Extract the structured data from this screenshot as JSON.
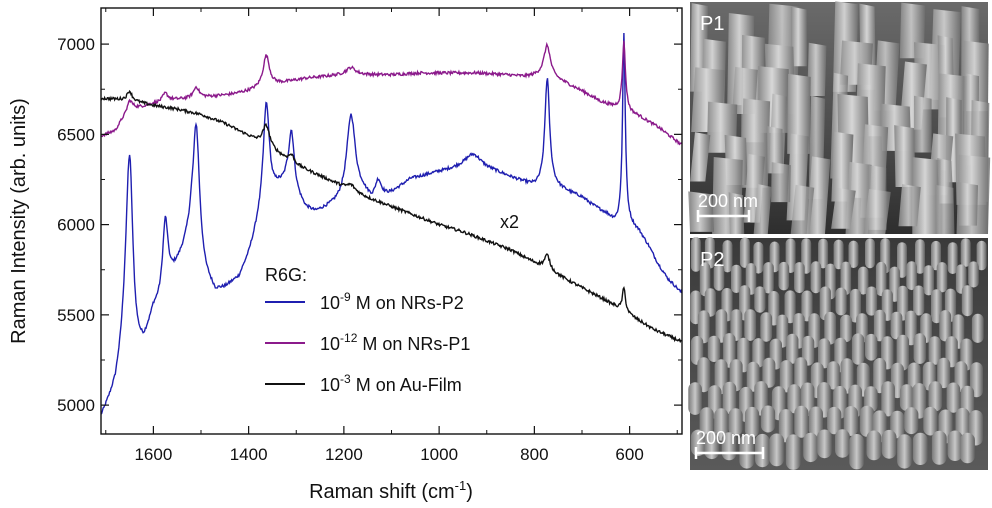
{
  "chart_data": {
    "type": "line",
    "xlabel": "Raman shift (cm",
    "xlabel_sup": "-1",
    "xlabel_close": ")",
    "ylabel": "Raman Intensity (arb. units)",
    "xlim": [
      1710,
      490
    ],
    "ylim": [
      4840,
      7200
    ],
    "x_reversed": true,
    "x_ticks": [
      1600,
      1400,
      1200,
      1000,
      800,
      600
    ],
    "y_ticks": [
      5000,
      5500,
      6000,
      6500,
      7000
    ],
    "legend_title": "R6G:",
    "annotation": "x2",
    "series": [
      {
        "name": "10-9 M on NRs-P2",
        "label_pre": "10",
        "label_sup": "-9",
        "label_post": " M on NRs-P2",
        "color": "#1f1fb0",
        "baseline": [
          [
            1710,
            4920
          ],
          [
            1680,
            5080
          ],
          [
            1660,
            5300
          ],
          [
            1640,
            5200
          ],
          [
            1620,
            5300
          ],
          [
            1600,
            5500
          ],
          [
            1580,
            5560
          ],
          [
            1560,
            5700
          ],
          [
            1540,
            5820
          ],
          [
            1520,
            5950
          ],
          [
            1490,
            5700
          ],
          [
            1470,
            5620
          ],
          [
            1450,
            5640
          ],
          [
            1420,
            5700
          ],
          [
            1400,
            5820
          ],
          [
            1380,
            5980
          ],
          [
            1340,
            6180
          ],
          [
            1320,
            6220
          ],
          [
            1300,
            6150
          ],
          [
            1280,
            6080
          ],
          [
            1260,
            6060
          ],
          [
            1240,
            6080
          ],
          [
            1220,
            6100
          ],
          [
            1200,
            6120
          ],
          [
            1160,
            6160
          ],
          [
            1140,
            6120
          ],
          [
            1100,
            6170
          ],
          [
            1060,
            6250
          ],
          [
            1000,
            6290
          ],
          [
            960,
            6310
          ],
          [
            920,
            6320
          ],
          [
            880,
            6290
          ],
          [
            850,
            6260
          ],
          [
            820,
            6230
          ],
          [
            800,
            6210
          ],
          [
            760,
            6210
          ],
          [
            720,
            6170
          ],
          [
            700,
            6150
          ],
          [
            680,
            6110
          ],
          [
            650,
            6060
          ],
          [
            630,
            6010
          ],
          [
            600,
            6000
          ],
          [
            580,
            5960
          ],
          [
            560,
            5880
          ],
          [
            540,
            5780
          ],
          [
            520,
            5700
          ],
          [
            490,
            5620
          ]
        ],
        "peaks": [
          [
            1650,
            1130,
            9
          ],
          [
            1575,
            420,
            7
          ],
          [
            1510,
            680,
            8
          ],
          [
            1363,
            600,
            8
          ],
          [
            1310,
            320,
            7
          ],
          [
            1185,
            470,
            11
          ],
          [
            1128,
            100,
            8
          ],
          [
            930,
            70,
            20
          ],
          [
            773,
            600,
            6
          ],
          [
            612,
            1050,
            3.5
          ]
        ]
      },
      {
        "name": "10-12 M on NRs-P1",
        "label_pre": "10",
        "label_sup": "-12",
        "label_post": " M on NRs-P1",
        "color": "#8b1a8b",
        "baseline": [
          [
            1710,
            6490
          ],
          [
            1680,
            6520
          ],
          [
            1665,
            6580
          ],
          [
            1640,
            6640
          ],
          [
            1600,
            6670
          ],
          [
            1560,
            6690
          ],
          [
            1520,
            6700
          ],
          [
            1480,
            6710
          ],
          [
            1440,
            6720
          ],
          [
            1400,
            6740
          ],
          [
            1360,
            6770
          ],
          [
            1320,
            6790
          ],
          [
            1280,
            6810
          ],
          [
            1240,
            6820
          ],
          [
            1200,
            6830
          ],
          [
            1160,
            6830
          ],
          [
            1100,
            6830
          ],
          [
            1040,
            6840
          ],
          [
            980,
            6840
          ],
          [
            920,
            6840
          ],
          [
            860,
            6830
          ],
          [
            820,
            6820
          ],
          [
            780,
            6830
          ],
          [
            740,
            6790
          ],
          [
            700,
            6740
          ],
          [
            660,
            6680
          ],
          [
            620,
            6640
          ],
          [
            580,
            6600
          ],
          [
            540,
            6540
          ],
          [
            510,
            6480
          ],
          [
            490,
            6440
          ]
        ],
        "peaks": [
          [
            1650,
            70,
            7
          ],
          [
            1575,
            45,
            7
          ],
          [
            1510,
            60,
            7
          ],
          [
            1363,
            170,
            8
          ],
          [
            1185,
            40,
            12
          ],
          [
            773,
            170,
            8
          ],
          [
            612,
            380,
            4
          ]
        ]
      },
      {
        "name": "10-3 M on Au-Film",
        "label_pre": "10",
        "label_sup": "-3",
        "label_post": " M on Au-Film",
        "color": "#111111",
        "baseline": [
          [
            1710,
            6700
          ],
          [
            1650,
            6690
          ],
          [
            1600,
            6660
          ],
          [
            1550,
            6640
          ],
          [
            1500,
            6610
          ],
          [
            1450,
            6560
          ],
          [
            1400,
            6490
          ],
          [
            1350,
            6410
          ],
          [
            1300,
            6330
          ],
          [
            1250,
            6270
          ],
          [
            1200,
            6210
          ],
          [
            1150,
            6150
          ],
          [
            1100,
            6100
          ],
          [
            1050,
            6050
          ],
          [
            1000,
            6000
          ],
          [
            950,
            5960
          ],
          [
            900,
            5910
          ],
          [
            850,
            5860
          ],
          [
            800,
            5790
          ],
          [
            750,
            5720
          ],
          [
            700,
            5650
          ],
          [
            650,
            5580
          ],
          [
            600,
            5500
          ],
          [
            550,
            5420
          ],
          [
            490,
            5350
          ]
        ],
        "peaks": [
          [
            1650,
            50,
            6
          ],
          [
            1363,
            120,
            9
          ],
          [
            1310,
            40,
            7
          ],
          [
            1185,
            30,
            10
          ],
          [
            773,
            80,
            7
          ],
          [
            612,
            130,
            4
          ]
        ]
      }
    ]
  },
  "panels": [
    {
      "label": "P1",
      "scale_bar": "200 nm"
    },
    {
      "label": "P2",
      "scale_bar": "200 nm"
    }
  ]
}
